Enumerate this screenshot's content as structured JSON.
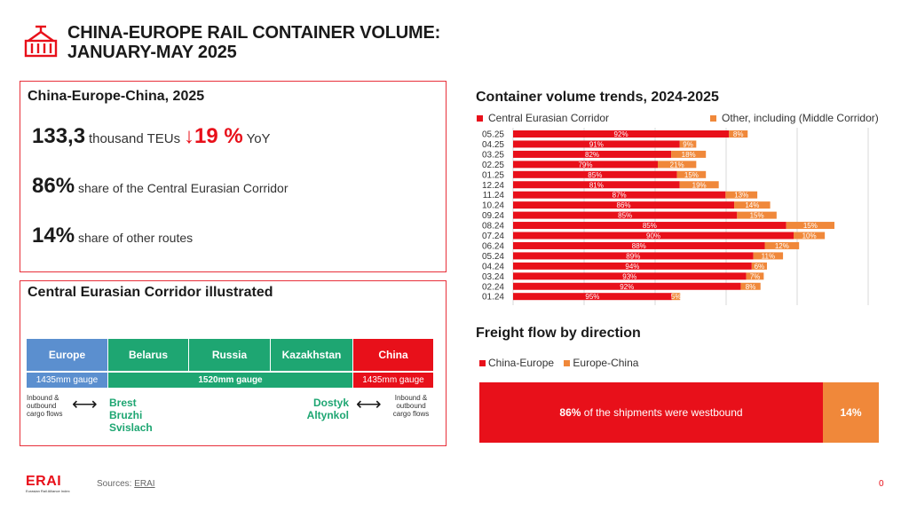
{
  "header": {
    "title_line1": "CHINA-EUROPE RAIL CONTAINER VOLUME:",
    "title_line2": "JANUARY-MAY 2025",
    "icon": "container-crane-icon"
  },
  "kpi_panel": {
    "title": "China-Europe-China,  2025",
    "volume_value": "133,3",
    "volume_unit": "thousand TEUs",
    "change_arrow": "↓",
    "change_value": "19 %",
    "change_label": "YoY",
    "share_central_value": "86%",
    "share_central_label": "share of the Central Eurasian Corridor",
    "share_other_value": "14%",
    "share_other_label": "share of other routes"
  },
  "corridor_panel": {
    "title": "Central Eurasian Corridor illustrated",
    "countries": [
      "Europe",
      "Belarus",
      "Russia",
      "Kazakhstan",
      "China"
    ],
    "gauge_left": "1435mm gauge",
    "gauge_mid": "1520mm gauge",
    "gauge_right": "1435mm gauge",
    "left_note": "Inbound & outbound cargo flows",
    "right_note": "Inbound & outbound cargo flows",
    "left_crossings": [
      "Brest",
      "Bruzhi",
      "Svislach"
    ],
    "right_crossings": [
      "Dostyk",
      "Altynkol"
    ],
    "arrow_glyph": "⟷"
  },
  "colors": {
    "red": "#e8101a",
    "orange": "#f0883a",
    "blue": "#5b8fcf",
    "green": "#1ea672",
    "dark_green": "#17a673"
  },
  "chart_data": [
    {
      "type": "bar",
      "orientation": "horizontal-stacked",
      "title": "Container volume trends, 2024-2025",
      "categories": [
        "05.25",
        "04.25",
        "03.25",
        "02.25",
        "01.25",
        "12.24",
        "11.24",
        "10.24",
        "09.24",
        "08.24",
        "07.24",
        "06.24",
        "05.24",
        "04.24",
        "03.24",
        "02.24",
        "01.24"
      ],
      "series": [
        {
          "name": "Central Eurasian Corridor",
          "color": "#e8101a",
          "values": [
            92,
            91,
            82,
            79,
            85,
            81,
            87,
            86,
            85,
            85,
            90,
            88,
            89,
            94,
            93,
            92,
            95
          ],
          "labels": [
            "92%",
            "91%",
            "82%",
            "79%",
            "85%",
            "81%",
            "87%",
            "86%",
            "85%",
            "85%",
            "90%",
            "88%",
            "89%",
            "94%",
            "93%",
            "92%",
            "95%"
          ]
        },
        {
          "name": "Other, including (Middle Corridor)",
          "color": "#f0883a",
          "values": [
            8,
            9,
            18,
            21,
            15,
            19,
            13,
            14,
            15,
            15,
            10,
            12,
            11,
            6,
            7,
            8,
            5
          ],
          "labels": [
            "8%",
            "9%",
            "18%",
            "21%",
            "15%",
            "19%",
            "13%",
            "14%",
            "15%",
            "15%",
            "10%",
            "12%",
            "11%",
            "6%",
            "7%",
            "8%",
            "5%"
          ]
        }
      ],
      "relative_totals": [
        0.73,
        0.57,
        0.6,
        0.57,
        0.6,
        0.64,
        0.76,
        0.8,
        0.82,
        1.0,
        0.97,
        0.89,
        0.84,
        0.79,
        0.78,
        0.77,
        0.52
      ],
      "grid": true,
      "legend": "top"
    },
    {
      "type": "bar",
      "orientation": "horizontal-100%-stacked",
      "title": "Freight flow by direction",
      "series": [
        {
          "name": "China-Europe",
          "color": "#e8101a",
          "value": 86,
          "label_bold": "86%",
          "label_rest": "of the shipments were westbound"
        },
        {
          "name": "Europe-China",
          "color": "#f0883a",
          "value": 14,
          "label_bold": "14%",
          "label_rest": ""
        }
      ],
      "legend": "top-left"
    }
  ],
  "footer": {
    "logo_text": "ERAI",
    "logo_subtext": "Eurasian Rail Alliance Index",
    "sources_label": "Sources:",
    "sources_link": "ERAI",
    "page_number": "0"
  }
}
